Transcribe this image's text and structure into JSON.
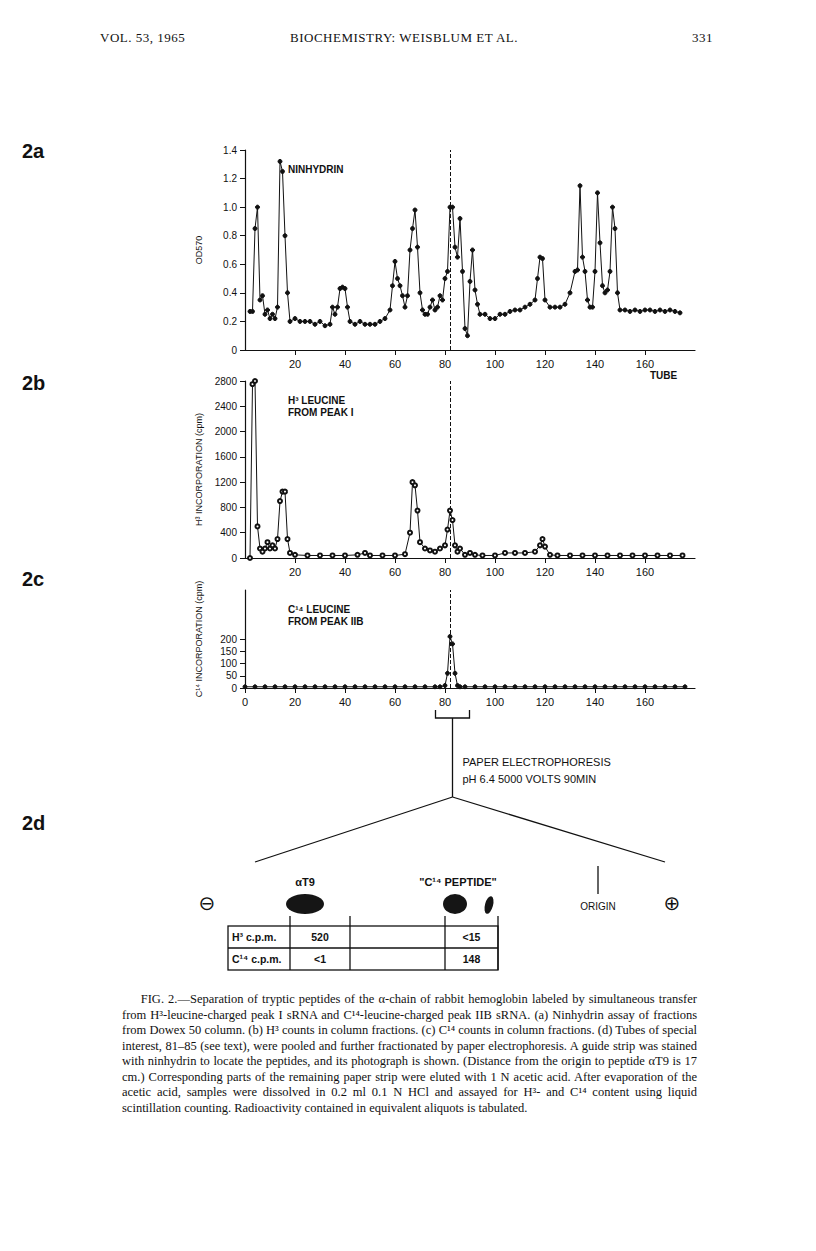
{
  "header": {
    "left": "VOL. 53, 1965",
    "center": "BIOCHEMISTRY: WEISBLUM ET AL.",
    "right": "331"
  },
  "chart_data": [
    {
      "panel": "2a",
      "type": "line",
      "title": "NINHYDRIN",
      "x_label": "TUBE",
      "y_label": "OD570",
      "marker": "circle",
      "color": "#111111",
      "grid": false,
      "xlim": [
        0,
        180
      ],
      "xticks": [
        20,
        40,
        60,
        80,
        100,
        120,
        140,
        160
      ],
      "ylim": [
        0,
        1.4
      ],
      "yticks": [
        0,
        0.2,
        0.4,
        0.6,
        0.8,
        {
          "value": 1,
          "label": "1.0"
        },
        1.2,
        1.4
      ],
      "annotations": [
        {
          "x": 82,
          "line_style": "dashed"
        }
      ],
      "x": [
        2,
        3,
        4,
        5,
        6,
        7,
        8,
        9,
        10,
        11,
        12,
        13,
        14,
        15,
        16,
        17,
        18,
        20,
        22,
        24,
        26,
        28,
        30,
        32,
        34,
        35,
        36,
        37,
        38,
        39,
        40,
        41,
        42,
        44,
        46,
        48,
        50,
        52,
        54,
        56,
        58,
        59,
        60,
        61,
        62,
        63,
        64,
        65,
        66,
        67,
        68,
        69,
        70,
        71,
        72,
        73,
        74,
        75,
        76,
        77,
        78,
        79,
        80,
        81,
        82,
        83,
        84,
        85,
        86,
        87,
        88,
        89,
        90,
        91,
        92,
        93,
        94,
        96,
        98,
        100,
        102,
        104,
        106,
        108,
        110,
        112,
        114,
        116,
        117,
        118,
        119,
        120,
        122,
        124,
        126,
        128,
        130,
        132,
        133,
        134,
        135,
        136,
        137,
        138,
        139,
        140,
        141,
        142,
        143,
        144,
        145,
        146,
        147,
        148,
        149,
        150,
        152,
        154,
        156,
        158,
        160,
        162,
        164,
        166,
        168,
        170,
        172,
        174
      ],
      "values": [
        0.27,
        0.27,
        0.85,
        1.0,
        0.35,
        0.38,
        0.25,
        0.28,
        0.22,
        0.25,
        0.22,
        0.3,
        1.32,
        1.25,
        0.8,
        0.4,
        0.2,
        0.22,
        0.2,
        0.2,
        0.2,
        0.18,
        0.2,
        0.17,
        0.18,
        0.3,
        0.25,
        0.3,
        0.43,
        0.44,
        0.43,
        0.3,
        0.2,
        0.18,
        0.2,
        0.18,
        0.18,
        0.18,
        0.2,
        0.22,
        0.28,
        0.45,
        0.62,
        0.5,
        0.45,
        0.38,
        0.3,
        0.38,
        0.7,
        0.85,
        0.98,
        0.72,
        0.4,
        0.28,
        0.25,
        0.25,
        0.3,
        0.35,
        0.28,
        0.3,
        0.38,
        0.35,
        0.5,
        0.55,
        1.0,
        1.0,
        0.72,
        0.65,
        0.92,
        0.55,
        0.15,
        0.1,
        0.48,
        0.7,
        0.42,
        0.32,
        0.25,
        0.25,
        0.22,
        0.22,
        0.25,
        0.25,
        0.27,
        0.28,
        0.28,
        0.3,
        0.32,
        0.35,
        0.5,
        0.65,
        0.64,
        0.35,
        0.3,
        0.3,
        0.3,
        0.32,
        0.4,
        0.55,
        0.56,
        1.15,
        0.65,
        0.55,
        0.35,
        0.3,
        0.3,
        0.55,
        1.1,
        0.75,
        0.45,
        0.4,
        0.42,
        0.55,
        1.0,
        0.85,
        0.4,
        0.28,
        0.28,
        0.27,
        0.28,
        0.27,
        0.28,
        0.28,
        0.27,
        0.28,
        0.27,
        0.28,
        0.27,
        0.26
      ]
    },
    {
      "panel": "2b",
      "type": "line",
      "title": "H³ LEUCINE\nFROM PEAK I",
      "y_label": "H³ INCORPORATION (cpm)",
      "marker": "open circle",
      "color": "#111111",
      "grid": false,
      "xlim": [
        0,
        180
      ],
      "xticks": [
        20,
        40,
        60,
        80,
        100,
        120,
        140,
        160
      ],
      "ylim": [
        0,
        2800
      ],
      "yticks": [
        0,
        400,
        800,
        1200,
        1600,
        2000,
        2400,
        2800
      ],
      "annotations": [
        {
          "x": 82,
          "line_style": "dashed"
        }
      ],
      "x": [
        2,
        3,
        4,
        5,
        6,
        7,
        8,
        9,
        10,
        11,
        12,
        13,
        14,
        15,
        16,
        17,
        18,
        20,
        25,
        30,
        35,
        40,
        45,
        48,
        50,
        55,
        60,
        64,
        66,
        67,
        68,
        69,
        70,
        72,
        74,
        76,
        78,
        80,
        81,
        82,
        83,
        84,
        85,
        86,
        88,
        90,
        92,
        95,
        100,
        104,
        108,
        112,
        116,
        118,
        119,
        120,
        122,
        125,
        130,
        135,
        140,
        145,
        150,
        155,
        160,
        165,
        170,
        175
      ],
      "values": [
        0,
        2750,
        2800,
        500,
        150,
        100,
        150,
        250,
        150,
        200,
        150,
        300,
        900,
        1050,
        1050,
        300,
        80,
        50,
        40,
        40,
        40,
        40,
        50,
        80,
        40,
        40,
        40,
        60,
        400,
        1200,
        1150,
        750,
        250,
        150,
        120,
        100,
        150,
        200,
        450,
        750,
        600,
        200,
        100,
        150,
        50,
        80,
        50,
        40,
        40,
        80,
        80,
        80,
        100,
        200,
        300,
        180,
        50,
        40,
        40,
        40,
        40,
        40,
        40,
        40,
        40,
        40,
        40,
        40
      ]
    },
    {
      "panel": "2c",
      "type": "line",
      "title": "C¹⁴ LEUCINE\nFROM PEAK IIB",
      "y_label": "C¹⁴ INCORPORATION (cpm)",
      "marker": "circle",
      "color": "#111111",
      "grid": false,
      "xlim": [
        0,
        180
      ],
      "xticks": [
        0,
        20,
        40,
        60,
        80,
        100,
        120,
        140,
        160
      ],
      "ylim": [
        0,
        400
      ],
      "yticks": [
        0,
        50,
        100,
        150,
        200
      ],
      "annotations": [
        {
          "x": 82,
          "line_style": "dashed"
        }
      ],
      "x": [
        0,
        4,
        8,
        12,
        16,
        20,
        24,
        28,
        32,
        36,
        40,
        44,
        48,
        52,
        56,
        60,
        64,
        68,
        72,
        76,
        78,
        80,
        81,
        82,
        83,
        84,
        85,
        86,
        88,
        92,
        96,
        100,
        104,
        108,
        112,
        116,
        120,
        124,
        128,
        132,
        136,
        140,
        144,
        148,
        152,
        156,
        160,
        164,
        168,
        172,
        176
      ],
      "values": [
        5,
        5,
        5,
        5,
        5,
        5,
        5,
        5,
        5,
        5,
        5,
        5,
        5,
        5,
        5,
        5,
        5,
        5,
        5,
        5,
        5,
        10,
        60,
        210,
        180,
        60,
        10,
        5,
        5,
        5,
        5,
        5,
        5,
        5,
        5,
        5,
        5,
        5,
        5,
        5,
        5,
        5,
        5,
        5,
        5,
        5,
        5,
        5,
        5,
        5,
        5
      ]
    }
  ],
  "electrophoresis": {
    "panel": "2d",
    "pooled_tubes": [
      81,
      85
    ],
    "method": "PAPER ELECTROPHORESIS",
    "conditions": "pH 6.4 5000 VOLTS 90MIN",
    "cathode": "⊖",
    "anode": "⊕",
    "origin": "ORIGIN",
    "spots": [
      "αT9",
      "\"C¹⁴ PEPTIDE\""
    ],
    "table": {
      "rows": [
        {
          "label": "H³ c.p.m.",
          "values": [
            520,
            "<15"
          ]
        },
        {
          "label": "C¹⁴ c.p.m.",
          "values": [
            "<1",
            148
          ]
        }
      ]
    }
  },
  "caption": "FIG. 2.—Separation of tryptic peptides of the α-chain of rabbit hemoglobin labeled by simultaneous transfer from H³-leucine-charged peak I sRNA and C¹⁴-leucine-charged peak IIB sRNA. (a) Ninhydrin assay of fractions from Dowex 50 column. (b) H³ counts in column fractions. (c) C¹⁴ counts in column fractions. (d) Tubes of special interest, 81–85 (see text), were pooled and further fractionated by paper electrophoresis. A guide strip was stained with ninhydrin to locate the peptides, and its photograph is shown. (Distance from the origin to peptide αT9 is 17 cm.) Corresponding parts of the remaining paper strip were eluted with 1 N acetic acid. After evaporation of the acetic acid, samples were dissolved in 0.2 ml 0.1 N HCl and assayed for H³- and C¹⁴ content using liquid scintillation counting. Radioactivity contained in equivalent aliquots is tabulated."
}
